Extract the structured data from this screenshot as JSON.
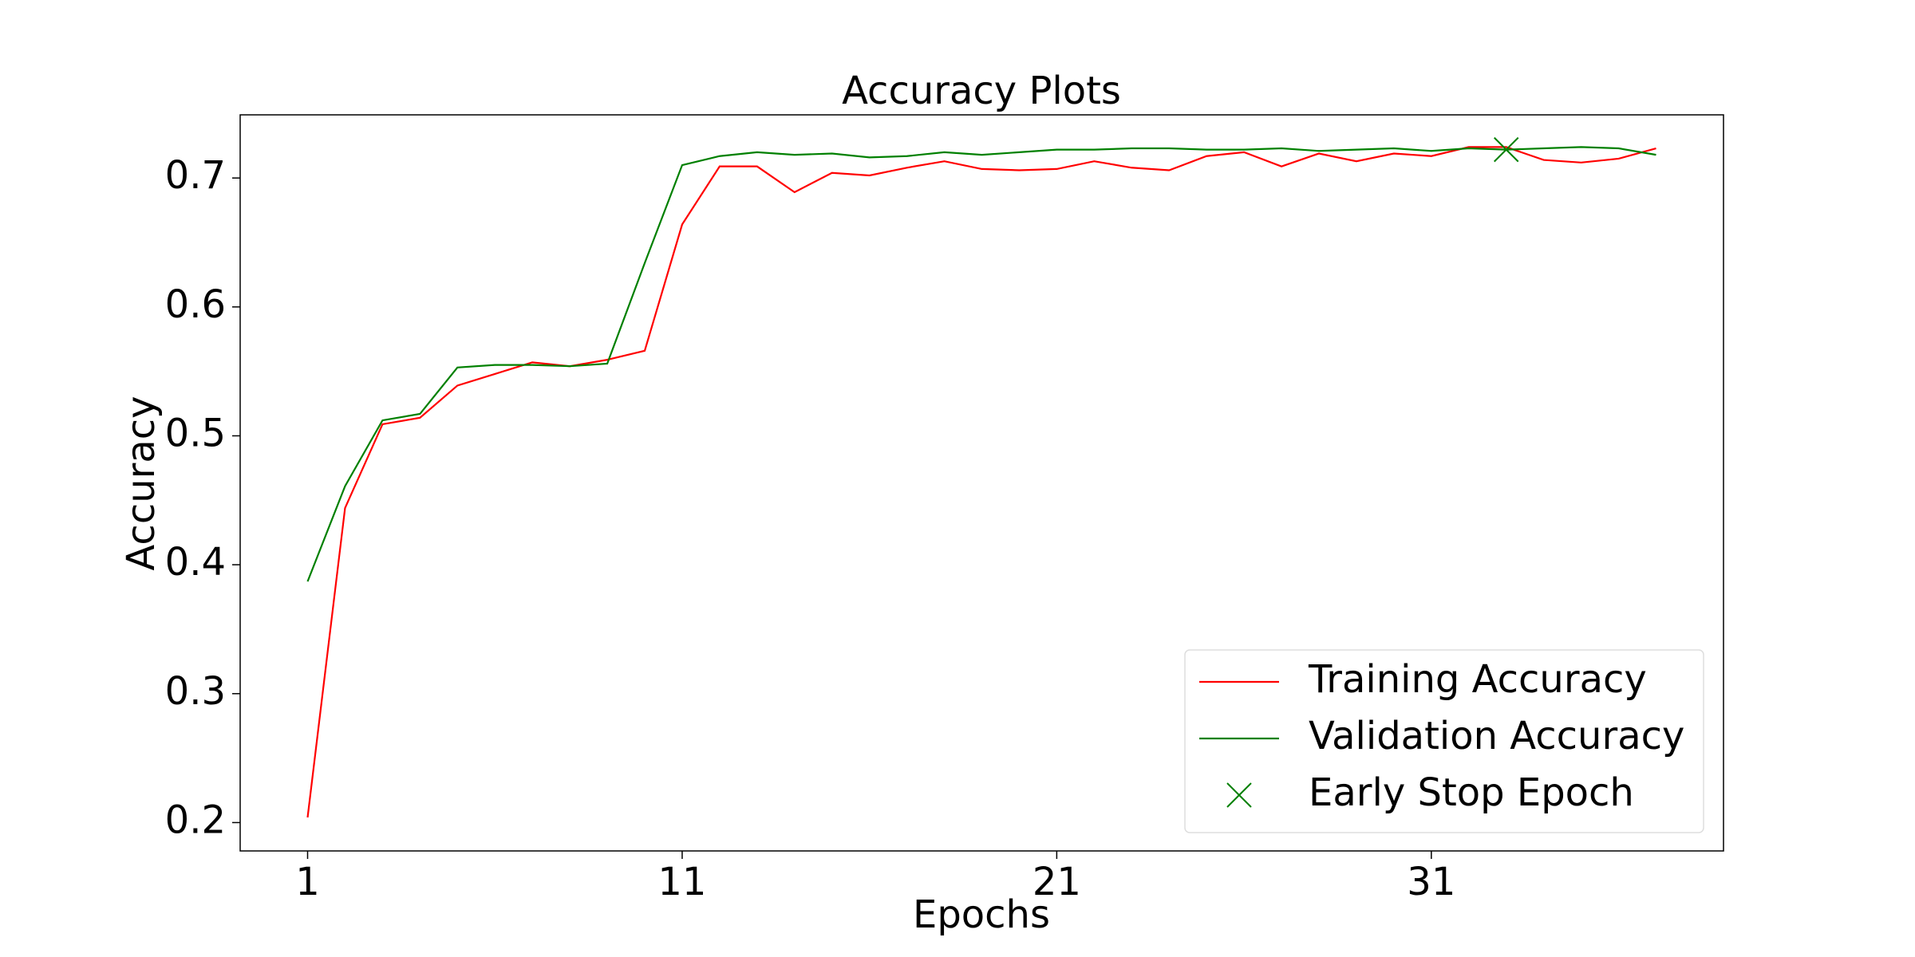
{
  "chart_data": {
    "type": "line",
    "title": "Accuracy Plots",
    "x_label": "Epochs",
    "y_label": "Accuracy",
    "x": [
      1,
      2,
      3,
      4,
      5,
      6,
      7,
      8,
      9,
      10,
      11,
      12,
      13,
      14,
      15,
      16,
      17,
      18,
      19,
      20,
      21,
      22,
      23,
      24,
      25,
      26,
      27,
      28,
      29,
      30,
      31,
      32,
      33,
      34,
      35,
      36,
      37
    ],
    "series": [
      {
        "name": "Training Accuracy",
        "color": "red",
        "values": [
          0.204,
          0.444,
          0.509,
          0.514,
          0.539,
          0.548,
          0.557,
          0.554,
          0.559,
          0.566,
          0.664,
          0.709,
          0.709,
          0.689,
          0.704,
          0.702,
          0.708,
          0.713,
          0.707,
          0.706,
          0.707,
          0.713,
          0.708,
          0.706,
          0.717,
          0.72,
          0.709,
          0.719,
          0.713,
          0.719,
          0.717,
          0.724,
          0.724,
          0.714,
          0.712,
          0.715,
          0.723
        ]
      },
      {
        "name": "Validation Accuracy",
        "color": "green",
        "values": [
          0.387,
          0.461,
          0.512,
          0.517,
          0.553,
          0.555,
          0.555,
          0.554,
          0.556,
          0.634,
          0.71,
          0.717,
          0.72,
          0.718,
          0.719,
          0.716,
          0.717,
          0.72,
          0.718,
          0.72,
          0.722,
          0.722,
          0.723,
          0.723,
          0.722,
          0.722,
          0.723,
          0.721,
          0.722,
          0.723,
          0.721,
          0.723,
          0.722,
          0.723,
          0.724,
          0.723,
          0.718
        ]
      }
    ],
    "markers": [
      {
        "name": "Early Stop Epoch",
        "color": "green",
        "x": 33,
        "y": 0.722
      }
    ],
    "xlim": [
      -0.8,
      38.8
    ],
    "ylim": [
      0.178,
      0.749
    ],
    "xticks": [
      1,
      11,
      21,
      31
    ],
    "yticks": [
      0.2,
      0.3,
      0.4,
      0.5,
      0.6,
      0.7
    ],
    "legend": "lower right",
    "grid": false
  }
}
